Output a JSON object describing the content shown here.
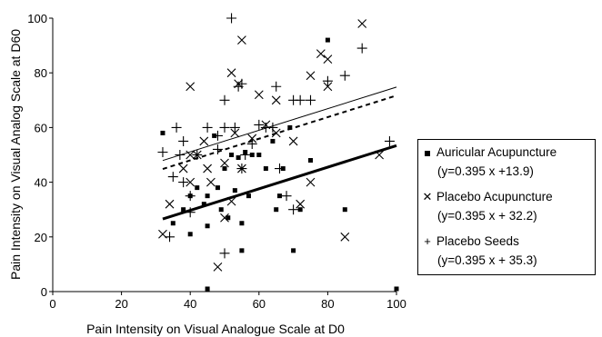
{
  "chart_data": {
    "type": "scatter",
    "xlabel": "Pain Intensity on Visual Analogue Scale at D0",
    "ylabel": "Pain Intensity on Visual Analog Scale at D60",
    "xlim": [
      0,
      100
    ],
    "ylim": [
      0,
      100
    ],
    "xticks": [
      0,
      20,
      40,
      60,
      80,
      100
    ],
    "yticks": [
      0,
      20,
      40,
      60,
      80,
      100
    ],
    "grid": false,
    "legend_position": "right",
    "series": [
      {
        "name": "Auricular Acupuncture",
        "marker": "square",
        "equation": "(y=0.395 x +13.9)",
        "trendline": {
          "slope": 0.395,
          "intercept": 13.9,
          "x_range": [
            32,
            100
          ],
          "style": "thick-solid"
        },
        "points": [
          [
            32,
            58
          ],
          [
            35,
            25
          ],
          [
            38,
            30
          ],
          [
            40,
            35
          ],
          [
            40,
            21
          ],
          [
            42,
            38
          ],
          [
            44,
            32
          ],
          [
            45,
            35
          ],
          [
            45,
            24
          ],
          [
            45,
            1
          ],
          [
            47,
            57
          ],
          [
            48,
            38
          ],
          [
            49,
            30
          ],
          [
            50,
            45
          ],
          [
            51,
            27
          ],
          [
            52,
            50
          ],
          [
            53,
            37
          ],
          [
            54,
            49
          ],
          [
            55,
            25
          ],
          [
            55,
            15
          ],
          [
            56,
            51
          ],
          [
            57,
            35
          ],
          [
            58,
            50
          ],
          [
            60,
            50
          ],
          [
            62,
            45
          ],
          [
            64,
            55
          ],
          [
            65,
            30
          ],
          [
            66,
            35
          ],
          [
            67,
            45
          ],
          [
            69,
            60
          ],
          [
            70,
            15
          ],
          [
            72,
            30
          ],
          [
            75,
            48
          ],
          [
            80,
            92
          ],
          [
            85,
            30
          ],
          [
            100,
            1
          ]
        ]
      },
      {
        "name": "Placebo Acupuncture",
        "marker": "x",
        "equation": "(y=0.395 x + 32.2)",
        "trendline": {
          "slope": 0.395,
          "intercept": 32.2,
          "x_range": [
            32,
            100
          ],
          "style": "dashed"
        },
        "points": [
          [
            32,
            21
          ],
          [
            34,
            32
          ],
          [
            38,
            45
          ],
          [
            40,
            75
          ],
          [
            40,
            50
          ],
          [
            40,
            40
          ],
          [
            42,
            50
          ],
          [
            44,
            55
          ],
          [
            45,
            45
          ],
          [
            46,
            40
          ],
          [
            48,
            9
          ],
          [
            50,
            27
          ],
          [
            50,
            47
          ],
          [
            52,
            80
          ],
          [
            52,
            33
          ],
          [
            53,
            58
          ],
          [
            54,
            76
          ],
          [
            55,
            92
          ],
          [
            55,
            45
          ],
          [
            58,
            56
          ],
          [
            60,
            72
          ],
          [
            62,
            61
          ],
          [
            65,
            70
          ],
          [
            65,
            58
          ],
          [
            70,
            55
          ],
          [
            72,
            32
          ],
          [
            75,
            40
          ],
          [
            75,
            79
          ],
          [
            78,
            87
          ],
          [
            80,
            75
          ],
          [
            80,
            85
          ],
          [
            85,
            20
          ],
          [
            90,
            98
          ],
          [
            95,
            50
          ]
        ]
      },
      {
        "name": "Placebo Seeds",
        "marker": "plus",
        "equation": "(y=0.395 x + 35.3)",
        "trendline": {
          "slope": 0.395,
          "intercept": 35.3,
          "x_range": [
            32,
            100
          ],
          "style": "solid"
        },
        "points": [
          [
            32,
            51
          ],
          [
            34,
            20
          ],
          [
            35,
            42
          ],
          [
            36,
            60
          ],
          [
            37,
            50
          ],
          [
            38,
            55
          ],
          [
            38,
            40
          ],
          [
            40,
            35
          ],
          [
            40,
            29
          ],
          [
            42,
            50
          ],
          [
            45,
            60
          ],
          [
            48,
            52
          ],
          [
            48,
            57
          ],
          [
            50,
            70
          ],
          [
            50,
            60
          ],
          [
            50,
            14
          ],
          [
            52,
            100
          ],
          [
            53,
            60
          ],
          [
            54,
            75
          ],
          [
            55,
            76
          ],
          [
            55,
            45
          ],
          [
            56,
            50
          ],
          [
            58,
            54
          ],
          [
            60,
            61
          ],
          [
            62,
            60
          ],
          [
            64,
            60
          ],
          [
            65,
            75
          ],
          [
            66,
            45
          ],
          [
            68,
            35
          ],
          [
            70,
            70
          ],
          [
            70,
            30
          ],
          [
            72,
            70
          ],
          [
            75,
            70
          ],
          [
            80,
            77
          ],
          [
            85,
            79
          ],
          [
            90,
            89
          ],
          [
            98,
            55
          ]
        ]
      }
    ]
  }
}
